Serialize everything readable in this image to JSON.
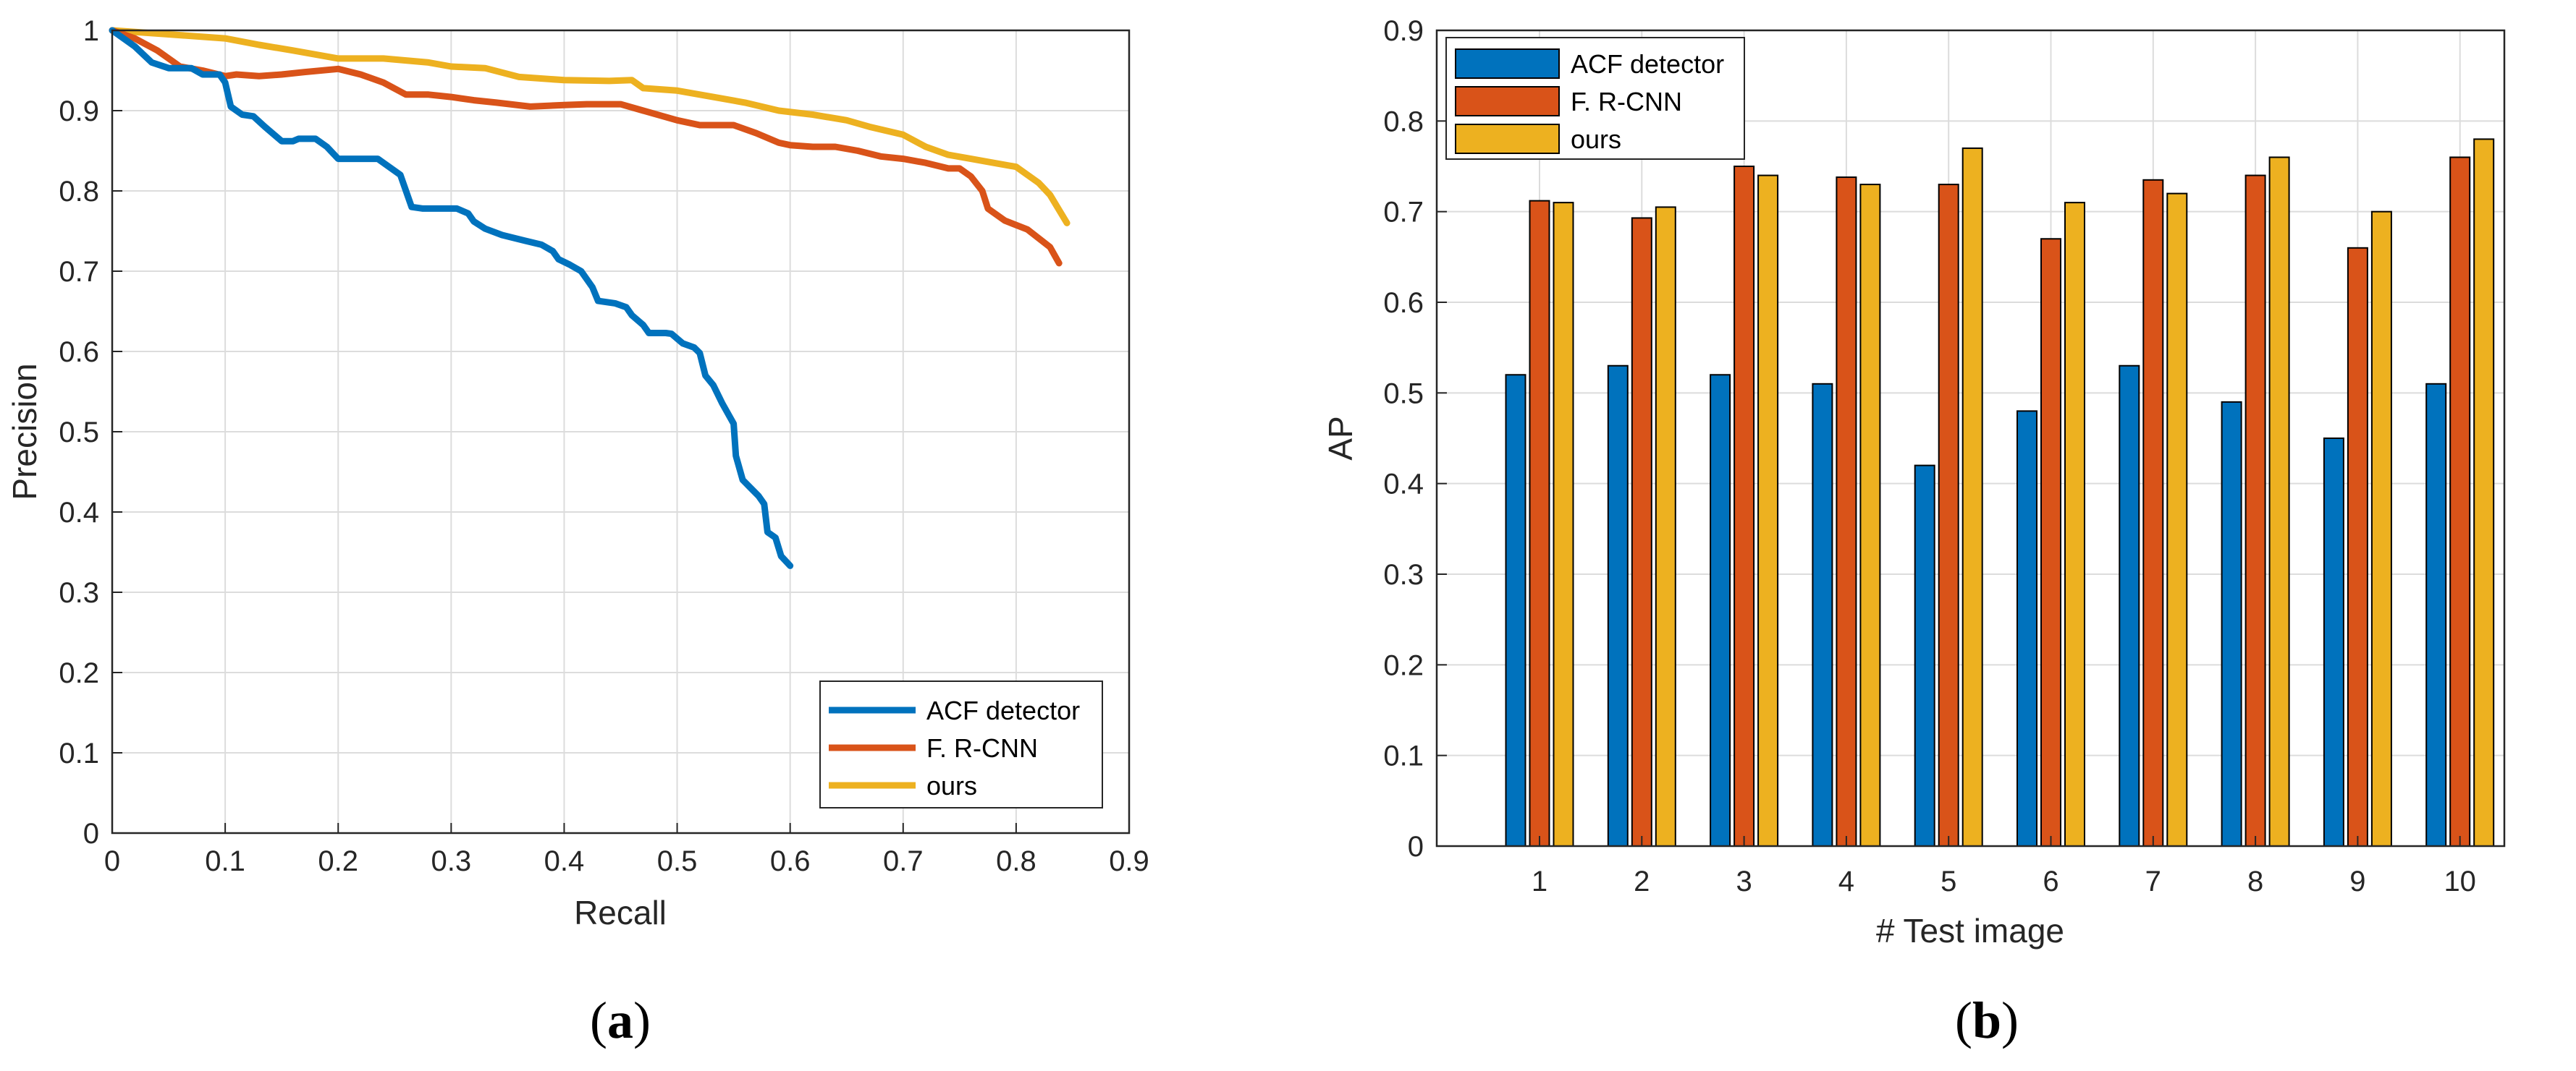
{
  "chart_data": [
    {
      "type": "line",
      "caption_open": "(",
      "caption_letter": "a",
      "caption_close": ")",
      "xlabel": "Recall",
      "ylabel": "Precision",
      "xlim": [
        0,
        0.9
      ],
      "ylim": [
        0,
        1
      ],
      "xticks": [
        "0",
        "0.1",
        "0.2",
        "0.3",
        "0.4",
        "0.5",
        "0.6",
        "0.7",
        "0.8",
        "0.9"
      ],
      "yticks": [
        "0",
        "0.1",
        "0.2",
        "0.3",
        "0.4",
        "0.5",
        "0.6",
        "0.7",
        "0.8",
        "0.9",
        "1"
      ],
      "grid": true,
      "legend_position": "bottom-right",
      "series": [
        {
          "name": "ACF detector",
          "color": "#0072BD",
          "points": [
            [
              0,
              1
            ],
            [
              0.02,
              0.98
            ],
            [
              0.035,
              0.96
            ],
            [
              0.05,
              0.953
            ],
            [
              0.07,
              0.953
            ],
            [
              0.08,
              0.945
            ],
            [
              0.095,
              0.945
            ],
            [
              0.1,
              0.935
            ],
            [
              0.105,
              0.905
            ],
            [
              0.115,
              0.895
            ],
            [
              0.125,
              0.893
            ],
            [
              0.135,
              0.88
            ],
            [
              0.15,
              0.862
            ],
            [
              0.16,
              0.862
            ],
            [
              0.165,
              0.865
            ],
            [
              0.18,
              0.865
            ],
            [
              0.19,
              0.855
            ],
            [
              0.2,
              0.84
            ],
            [
              0.21,
              0.84
            ],
            [
              0.235,
              0.84
            ],
            [
              0.245,
              0.83
            ],
            [
              0.255,
              0.82
            ],
            [
              0.265,
              0.78
            ],
            [
              0.275,
              0.778
            ],
            [
              0.305,
              0.778
            ],
            [
              0.315,
              0.772
            ],
            [
              0.32,
              0.762
            ],
            [
              0.33,
              0.753
            ],
            [
              0.345,
              0.745
            ],
            [
              0.365,
              0.738
            ],
            [
              0.38,
              0.733
            ],
            [
              0.39,
              0.725
            ],
            [
              0.395,
              0.715
            ],
            [
              0.405,
              0.708
            ],
            [
              0.415,
              0.7
            ],
            [
              0.425,
              0.68
            ],
            [
              0.43,
              0.663
            ],
            [
              0.445,
              0.66
            ],
            [
              0.455,
              0.655
            ],
            [
              0.46,
              0.645
            ],
            [
              0.47,
              0.633
            ],
            [
              0.475,
              0.623
            ],
            [
              0.49,
              0.623
            ],
            [
              0.495,
              0.622
            ],
            [
              0.505,
              0.61
            ],
            [
              0.515,
              0.605
            ],
            [
              0.52,
              0.598
            ],
            [
              0.525,
              0.57
            ],
            [
              0.532,
              0.558
            ],
            [
              0.54,
              0.535
            ],
            [
              0.55,
              0.51
            ],
            [
              0.552,
              0.47
            ],
            [
              0.558,
              0.44
            ],
            [
              0.565,
              0.43
            ],
            [
              0.572,
              0.42
            ],
            [
              0.577,
              0.41
            ],
            [
              0.58,
              0.375
            ],
            [
              0.587,
              0.368
            ],
            [
              0.592,
              0.345
            ],
            [
              0.6,
              0.333
            ]
          ]
        },
        {
          "name": "F. R-CNN",
          "color": "#D95319",
          "points": [
            [
              0,
              1
            ],
            [
              0.02,
              0.99
            ],
            [
              0.04,
              0.975
            ],
            [
              0.06,
              0.955
            ],
            [
              0.08,
              0.95
            ],
            [
              0.1,
              0.943
            ],
            [
              0.11,
              0.945
            ],
            [
              0.13,
              0.943
            ],
            [
              0.15,
              0.945
            ],
            [
              0.17,
              0.948
            ],
            [
              0.2,
              0.952
            ],
            [
              0.22,
              0.945
            ],
            [
              0.24,
              0.935
            ],
            [
              0.26,
              0.92
            ],
            [
              0.28,
              0.92
            ],
            [
              0.3,
              0.917
            ],
            [
              0.32,
              0.913
            ],
            [
              0.34,
              0.91
            ],
            [
              0.37,
              0.905
            ],
            [
              0.4,
              0.907
            ],
            [
              0.42,
              0.908
            ],
            [
              0.45,
              0.908
            ],
            [
              0.47,
              0.9
            ],
            [
              0.5,
              0.888
            ],
            [
              0.52,
              0.882
            ],
            [
              0.55,
              0.882
            ],
            [
              0.57,
              0.872
            ],
            [
              0.59,
              0.86
            ],
            [
              0.6,
              0.857
            ],
            [
              0.62,
              0.855
            ],
            [
              0.64,
              0.855
            ],
            [
              0.66,
              0.85
            ],
            [
              0.68,
              0.843
            ],
            [
              0.7,
              0.84
            ],
            [
              0.72,
              0.835
            ],
            [
              0.74,
              0.828
            ],
            [
              0.75,
              0.828
            ],
            [
              0.76,
              0.818
            ],
            [
              0.77,
              0.8
            ],
            [
              0.775,
              0.778
            ],
            [
              0.79,
              0.763
            ],
            [
              0.81,
              0.752
            ],
            [
              0.83,
              0.73
            ],
            [
              0.838,
              0.71
            ]
          ]
        },
        {
          "name": "ours",
          "color": "#EDB120",
          "points": [
            [
              0,
              1
            ],
            [
              0.05,
              0.995
            ],
            [
              0.1,
              0.99
            ],
            [
              0.13,
              0.982
            ],
            [
              0.16,
              0.975
            ],
            [
              0.2,
              0.965
            ],
            [
              0.24,
              0.965
            ],
            [
              0.28,
              0.96
            ],
            [
              0.3,
              0.955
            ],
            [
              0.33,
              0.953
            ],
            [
              0.36,
              0.942
            ],
            [
              0.4,
              0.938
            ],
            [
              0.44,
              0.937
            ],
            [
              0.46,
              0.938
            ],
            [
              0.47,
              0.928
            ],
            [
              0.5,
              0.925
            ],
            [
              0.52,
              0.92
            ],
            [
              0.54,
              0.915
            ],
            [
              0.56,
              0.91
            ],
            [
              0.59,
              0.9
            ],
            [
              0.62,
              0.895
            ],
            [
              0.65,
              0.888
            ],
            [
              0.67,
              0.88
            ],
            [
              0.7,
              0.87
            ],
            [
              0.72,
              0.855
            ],
            [
              0.74,
              0.845
            ],
            [
              0.76,
              0.84
            ],
            [
              0.78,
              0.835
            ],
            [
              0.8,
              0.83
            ],
            [
              0.81,
              0.82
            ],
            [
              0.82,
              0.81
            ],
            [
              0.83,
              0.795
            ],
            [
              0.845,
              0.76
            ]
          ]
        }
      ]
    },
    {
      "type": "bar",
      "caption_open": "(",
      "caption_letter": "b",
      "caption_close": ")",
      "xlabel": "# Test image",
      "ylabel": "AP",
      "ylim": [
        0,
        0.9
      ],
      "yticks": [
        "0",
        "0.1",
        "0.2",
        "0.3",
        "0.4",
        "0.5",
        "0.6",
        "0.7",
        "0.8",
        "0.9"
      ],
      "categories": [
        "1",
        "2",
        "3",
        "4",
        "5",
        "6",
        "7",
        "8",
        "9",
        "10"
      ],
      "grid": true,
      "legend_position": "top-left",
      "series": [
        {
          "name": "ACF detector",
          "color": "#0072BD",
          "values": [
            0.52,
            0.53,
            0.52,
            0.51,
            0.42,
            0.48,
            0.53,
            0.49,
            0.45,
            0.51
          ]
        },
        {
          "name": "F. R-CNN",
          "color": "#D95319",
          "values": [
            0.712,
            0.693,
            0.75,
            0.738,
            0.73,
            0.67,
            0.735,
            0.74,
            0.66,
            0.76
          ]
        },
        {
          "name": "ours",
          "color": "#EDB120",
          "values": [
            0.71,
            0.705,
            0.74,
            0.73,
            0.77,
            0.71,
            0.72,
            0.76,
            0.7,
            0.78
          ]
        }
      ]
    }
  ]
}
